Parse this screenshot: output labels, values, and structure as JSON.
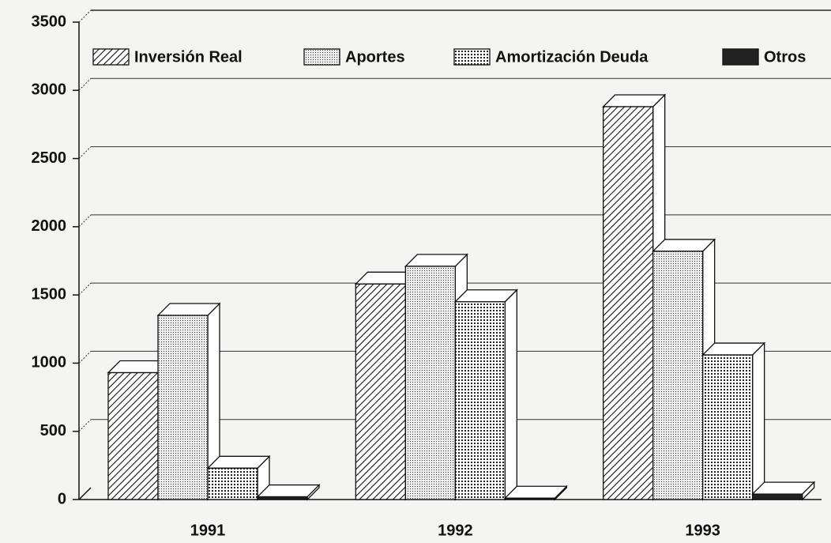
{
  "chart_data": {
    "type": "bar3d",
    "categories": [
      "1991",
      "1992",
      "1993"
    ],
    "series": [
      {
        "name": "Inversión Real",
        "pattern": "hatch",
        "values": [
          930,
          1580,
          2880
        ]
      },
      {
        "name": "Aportes",
        "pattern": "dots",
        "values": [
          1350,
          1710,
          1820
        ]
      },
      {
        "name": "Amortización Deuda",
        "pattern": "grid",
        "values": [
          230,
          1450,
          1060
        ]
      },
      {
        "name": "Otros",
        "pattern": "solid",
        "values": [
          20,
          10,
          40
        ]
      }
    ],
    "ylim": [
      0,
      3500
    ],
    "yticks": [
      0,
      500,
      1000,
      1500,
      2000,
      2500,
      3000,
      3500
    ],
    "grid": true
  }
}
